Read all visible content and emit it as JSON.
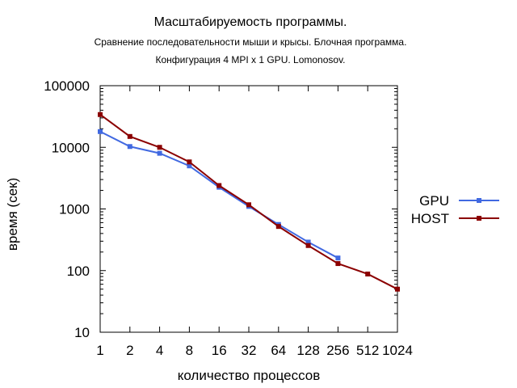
{
  "chart_data": {
    "type": "line",
    "title": "Масштабируемость программы.",
    "subtitle": [
      "Сравнение последовательности мыши и крысы. Блочная программа.",
      "Конфигурация 4 MPI x 1 GPU. Lomonosov."
    ],
    "xlabel": "количество процессов",
    "ylabel": "время (сек)",
    "x_scale": "log2",
    "y_scale": "log10",
    "xlim": [
      1,
      1024
    ],
    "ylim": [
      10,
      100000
    ],
    "x_ticks": [
      "1",
      "2",
      "4",
      "8",
      "16",
      "32",
      "64",
      "128",
      "256",
      "512",
      "1024"
    ],
    "y_ticks": [
      "10",
      "100",
      "1000",
      "10000",
      "100000"
    ],
    "grid": false,
    "legend_position": "right",
    "series": [
      {
        "name": "GPU",
        "color": "#4169e1",
        "x": [
          1,
          2,
          4,
          8,
          16,
          32,
          64,
          128,
          256
        ],
        "values": [
          18000,
          10300,
          8000,
          5000,
          2250,
          1100,
          560,
          290,
          160
        ]
      },
      {
        "name": "HOST",
        "color": "#8b0000",
        "x": [
          1,
          2,
          4,
          8,
          16,
          32,
          64,
          128,
          256,
          512,
          1024
        ],
        "values": [
          34000,
          15000,
          10000,
          5800,
          2400,
          1170,
          520,
          255,
          130,
          88,
          50
        ]
      }
    ]
  }
}
